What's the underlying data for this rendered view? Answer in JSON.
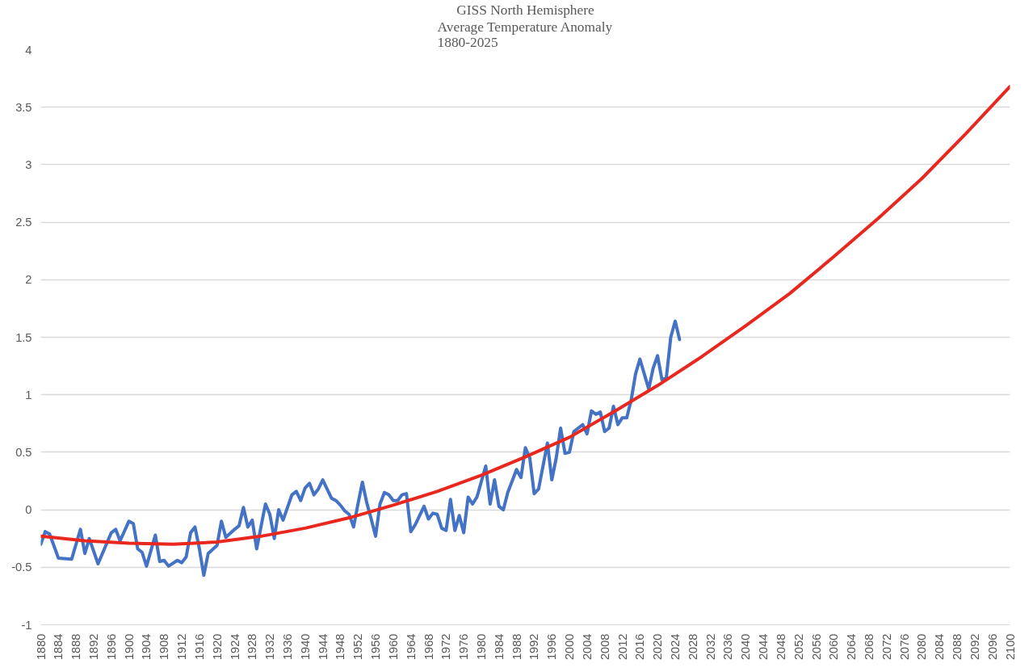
{
  "chart_data": {
    "type": "line",
    "title": "GISS North Hemisphere",
    "subtitle": "Average Temperature Anomaly\n1880-2025",
    "xlim": [
      1880,
      2100
    ],
    "xticks": [
      1880,
      1884,
      1888,
      1892,
      1896,
      1900,
      1904,
      1908,
      1912,
      1916,
      1920,
      1924,
      1928,
      1932,
      1936,
      1940,
      1944,
      1948,
      1952,
      1956,
      1960,
      1964,
      1968,
      1972,
      1976,
      1980,
      1984,
      1988,
      1992,
      1996,
      2000,
      2004,
      2008,
      2012,
      2016,
      2020,
      2024,
      2028,
      2032,
      2036,
      2040,
      2044,
      2048,
      2052,
      2056,
      2060,
      2064,
      2068,
      2072,
      2076,
      2080,
      2084,
      2088,
      2092,
      2096,
      2100
    ],
    "ylim": [
      -1,
      4
    ],
    "yticks": [
      -1,
      -0.5,
      0,
      0.5,
      1,
      1.5,
      2,
      2.5,
      3,
      3.5,
      4
    ],
    "grid": "y",
    "line_style": "solid",
    "marker": "none",
    "series": [
      {
        "color": "#4472c4",
        "x": [
          1880,
          1881,
          1882,
          1884,
          1887,
          1889,
          1890,
          1891,
          1893,
          1896,
          1897,
          1898,
          1900,
          1901,
          1902,
          1903,
          1904,
          1906,
          1907,
          1908,
          1909,
          1911,
          1912,
          1913,
          1914,
          1915,
          1916,
          1917,
          1918,
          1920,
          1921,
          1922,
          1924,
          1925,
          1926,
          1927,
          1928,
          1929,
          1931,
          1932,
          1933,
          1934,
          1935,
          1937,
          1938,
          1939,
          1940,
          1941,
          1942,
          1943,
          1944,
          1946,
          1947,
          1948,
          1949,
          1950,
          1951,
          1952,
          1953,
          1954,
          1955,
          1956,
          1957,
          1958,
          1959,
          1960,
          1961,
          1962,
          1963,
          1964,
          1965,
          1967,
          1968,
          1969,
          1970,
          1971,
          1972,
          1973,
          1974,
          1975,
          1976,
          1977,
          1978,
          1979,
          1981,
          1982,
          1983,
          1984,
          1985,
          1986,
          1988,
          1989,
          1990,
          1991,
          1992,
          1993,
          1995,
          1996,
          1997,
          1998,
          1999,
          2000,
          2001,
          2003,
          2004,
          2005,
          2006,
          2007,
          2008,
          2009,
          2010,
          2011,
          2012,
          2013,
          2014,
          2015,
          2016,
          2017,
          2018,
          2019,
          2020,
          2021,
          2022,
          2023,
          2024,
          2025
        ],
        "values": [
          -0.3,
          -0.19,
          -0.21,
          -0.42,
          -0.43,
          -0.17,
          -0.38,
          -0.25,
          -0.47,
          -0.2,
          -0.17,
          -0.27,
          -0.1,
          -0.12,
          -0.34,
          -0.37,
          -0.49,
          -0.22,
          -0.45,
          -0.44,
          -0.49,
          -0.44,
          -0.46,
          -0.41,
          -0.2,
          -0.15,
          -0.34,
          -0.57,
          -0.38,
          -0.31,
          -0.1,
          -0.24,
          -0.17,
          -0.14,
          0.02,
          -0.15,
          -0.09,
          -0.34,
          0.05,
          -0.04,
          -0.25,
          0.0,
          -0.09,
          0.13,
          0.16,
          0.08,
          0.19,
          0.23,
          0.13,
          0.18,
          0.26,
          0.1,
          0.08,
          0.04,
          -0.01,
          -0.04,
          -0.15,
          0.05,
          0.24,
          0.06,
          -0.08,
          -0.23,
          0.05,
          0.15,
          0.13,
          0.08,
          0.08,
          0.13,
          0.14,
          -0.19,
          -0.13,
          0.03,
          -0.08,
          -0.03,
          -0.04,
          -0.16,
          -0.18,
          0.09,
          -0.18,
          -0.05,
          -0.2,
          0.11,
          0.05,
          0.11,
          0.38,
          0.05,
          0.26,
          0.03,
          0.0,
          0.15,
          0.35,
          0.28,
          0.54,
          0.45,
          0.14,
          0.18,
          0.58,
          0.26,
          0.45,
          0.71,
          0.49,
          0.5,
          0.68,
          0.74,
          0.66,
          0.86,
          0.83,
          0.85,
          0.68,
          0.71,
          0.9,
          0.74,
          0.8,
          0.8,
          0.95,
          1.18,
          1.31,
          1.18,
          1.05,
          1.23,
          1.34,
          1.13,
          1.15,
          1.5,
          1.64,
          1.48
        ]
      },
      {
        "color": "#e8281e",
        "x": [
          1880,
          1890,
          1900,
          1910,
          1920,
          1930,
          1940,
          1950,
          1960,
          1970,
          1980,
          1990,
          2000,
          2010,
          2020,
          2030,
          2040,
          2050,
          2060,
          2070,
          2080,
          2090,
          2100
        ],
        "values": [
          -0.23,
          -0.27,
          -0.29,
          -0.3,
          -0.28,
          -0.23,
          -0.16,
          -0.07,
          0.04,
          0.16,
          0.3,
          0.46,
          0.63,
          0.85,
          1.08,
          1.33,
          1.6,
          1.88,
          2.2,
          2.53,
          2.88,
          3.27,
          3.68
        ]
      }
    ]
  }
}
